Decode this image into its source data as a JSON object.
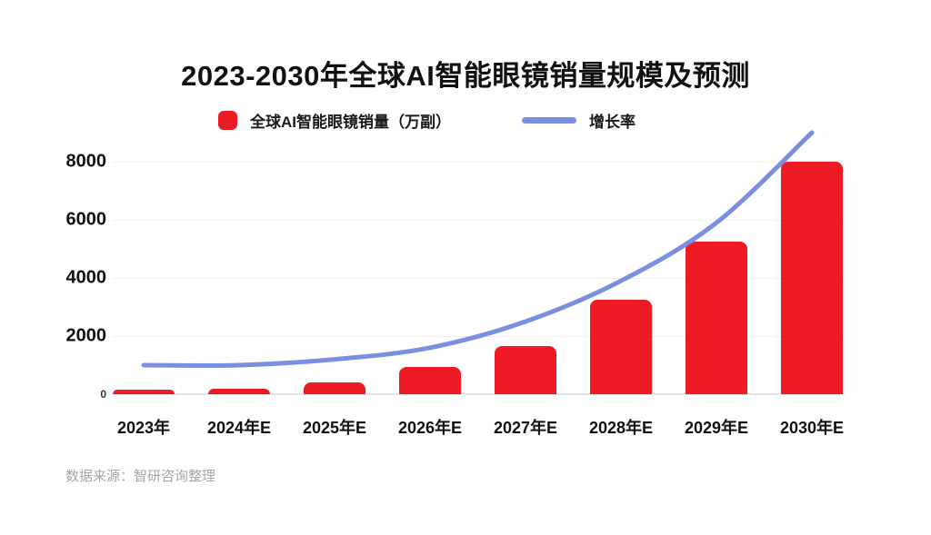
{
  "colors": {
    "bar_red": "#ED1C24",
    "line_blue": "#7B8FE0",
    "grid_gray": "#EEEEEE",
    "axis_text": "#111111",
    "source_gray": "#A5A5A5",
    "background": "#FFFFFF"
  },
  "source": {
    "text": "数据来源：智研咨询整理"
  },
  "chart_data": {
    "type": "bar+line combo",
    "title": "2023-2030年全球AI智能眼镜销量规模及预测",
    "categories": [
      "2023年",
      "2024年E",
      "2025年E",
      "2026年E",
      "2027年E",
      "2028年E",
      "2029年E",
      "2030年E"
    ],
    "series": [
      {
        "name": "全球AI智能眼镜销量（万副）",
        "type": "bar",
        "color": "#ED1C24",
        "values": [
          150,
          180,
          400,
          950,
          1650,
          3250,
          5250,
          8000
        ]
      },
      {
        "name": "增长率",
        "type": "line",
        "color": "#7B8FE0",
        "axis": "secondary (no visible tick labels)",
        "values_on_left_axis_scale": [
          1000,
          1000,
          1200,
          1600,
          2500,
          3900,
          5900,
          9000
        ]
      }
    ],
    "xlabel": "",
    "ylabel": "",
    "y_ticks": [
      0,
      2000,
      4000,
      6000,
      8000
    ],
    "ylim": [
      0,
      8000
    ],
    "grid": "horizontal light-gray lines at each y tick",
    "legend_position": "top-center below title",
    "notes": "bars have rounded tops; growth-rate line is smooth with no point markers; 0 tick label rendered smaller than other tick labels"
  }
}
